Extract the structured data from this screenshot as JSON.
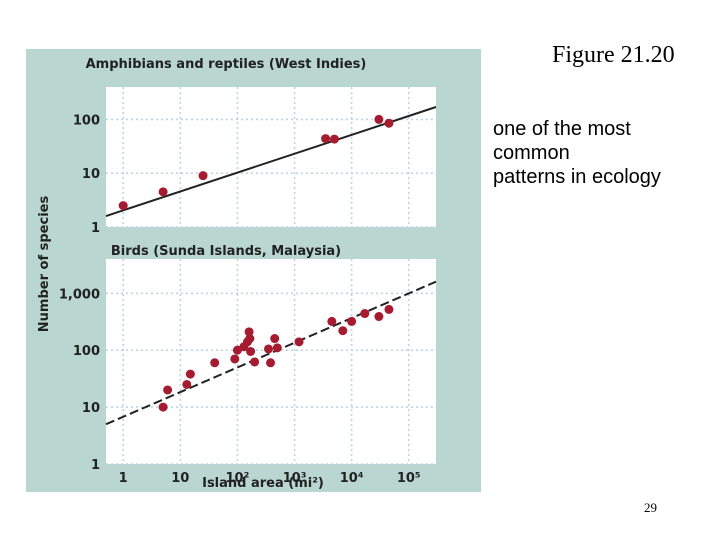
{
  "slide": {
    "title": "Figure 21.20",
    "body_lines": [
      "one of the most",
      "common",
      "patterns in ecology"
    ],
    "page_number": "29"
  },
  "figure": {
    "y_axis_label": "Number of species",
    "x_axis_label": "Island area (mi²)",
    "colors": {
      "panel_bg": "#b9d6d0",
      "plot_bg": "#ffffff",
      "point": "#a51c30",
      "line": "#222222",
      "grid": "#bcd6e8"
    }
  },
  "chart_data": [
    {
      "type": "scatter",
      "title": "Amphibians and reptiles (West Indies)",
      "xscale": "log",
      "yscale": "log",
      "xlim": [
        0.5,
        300000
      ],
      "ylim": [
        1,
        400
      ],
      "y_ticks": [
        1,
        10,
        100
      ],
      "y_tick_labels": [
        "1",
        "10",
        "100"
      ],
      "grid": true,
      "points": [
        {
          "x": 1,
          "y": 2.5
        },
        {
          "x": 5,
          "y": 4.5
        },
        {
          "x": 25,
          "y": 9
        },
        {
          "x": 3500,
          "y": 44
        },
        {
          "x": 5000,
          "y": 43
        },
        {
          "x": 30000,
          "y": 100
        },
        {
          "x": 45000,
          "y": 85
        }
      ],
      "trendline": {
        "x": [
          0.5,
          300000
        ],
        "y": [
          1.6,
          170
        ]
      }
    },
    {
      "type": "scatter",
      "title": "Birds (Sunda Islands, Malaysia)",
      "xscale": "log",
      "yscale": "log",
      "xlim": [
        0.5,
        300000
      ],
      "ylim": [
        1,
        4000
      ],
      "x_ticks": [
        1,
        10,
        100,
        1000,
        10000,
        100000
      ],
      "x_tick_labels": [
        "1",
        "10",
        "10²",
        "10³",
        "10⁴",
        "10⁵"
      ],
      "y_ticks": [
        1,
        10,
        100,
        1000
      ],
      "y_tick_labels": [
        "1",
        "10",
        "100",
        "1,000"
      ],
      "grid": true,
      "points": [
        {
          "x": 5,
          "y": 10
        },
        {
          "x": 6,
          "y": 20
        },
        {
          "x": 13,
          "y": 25
        },
        {
          "x": 15,
          "y": 38
        },
        {
          "x": 40,
          "y": 60
        },
        {
          "x": 90,
          "y": 70
        },
        {
          "x": 100,
          "y": 100
        },
        {
          "x": 130,
          "y": 115
        },
        {
          "x": 150,
          "y": 140
        },
        {
          "x": 160,
          "y": 210
        },
        {
          "x": 165,
          "y": 160
        },
        {
          "x": 170,
          "y": 95
        },
        {
          "x": 200,
          "y": 62
        },
        {
          "x": 350,
          "y": 105
        },
        {
          "x": 380,
          "y": 60
        },
        {
          "x": 450,
          "y": 160
        },
        {
          "x": 500,
          "y": 110
        },
        {
          "x": 1200,
          "y": 140
        },
        {
          "x": 4500,
          "y": 320
        },
        {
          "x": 7000,
          "y": 220
        },
        {
          "x": 10000,
          "y": 320
        },
        {
          "x": 17000,
          "y": 440
        },
        {
          "x": 30000,
          "y": 390
        },
        {
          "x": 45000,
          "y": 520
        }
      ],
      "trendline": {
        "x": [
          0.5,
          300000
        ],
        "y": [
          5,
          1600
        ]
      }
    }
  ]
}
